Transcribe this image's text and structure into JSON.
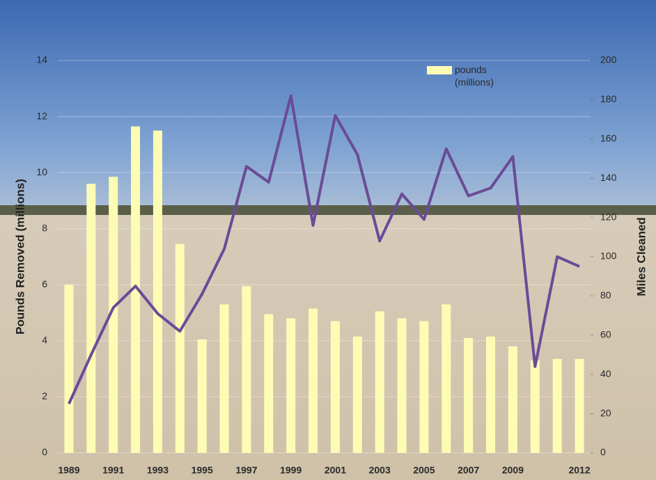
{
  "chart_data": {
    "type": "bar",
    "categories": [
      "1989",
      null,
      "1991",
      null,
      "1993",
      null,
      "1995",
      null,
      "1997",
      null,
      "1999",
      null,
      "2001",
      null,
      "2003",
      null,
      "2005",
      null,
      "2007",
      null,
      "2009",
      null,
      null,
      "2012"
    ],
    "series": [
      {
        "name": "pounds (millions)",
        "color": "#fdfcb4",
        "values": [
          6.0,
          9.6,
          9.85,
          11.65,
          11.5,
          7.45,
          4.05,
          5.3,
          5.95,
          4.95,
          4.8,
          5.15,
          4.7,
          4.15,
          5.05,
          4.8,
          4.7,
          5.3,
          4.1,
          4.15,
          3.8,
          3.3,
          3.35,
          3.35
        ]
      },
      {
        "type": "line",
        "axis": "y2",
        "color": "#6a4b97",
        "values": [
          25,
          50,
          74,
          85,
          71,
          62,
          81,
          104,
          146,
          138,
          182,
          116,
          172,
          152,
          108,
          132,
          119,
          155,
          131,
          135,
          151,
          44,
          100,
          95
        ]
      }
    ],
    "y_label": "Pounds Removed (millions)",
    "y2_label": "Miles Cleaned",
    "ylim": [
      0,
      14
    ],
    "yticks": [
      0,
      2,
      4,
      6,
      8,
      10,
      12,
      14
    ],
    "y2lim": [
      0,
      200
    ],
    "y2ticks": [
      0,
      20,
      40,
      60,
      80,
      100,
      120,
      140,
      160,
      180,
      200
    ],
    "grid": true,
    "legend": "top-right"
  }
}
